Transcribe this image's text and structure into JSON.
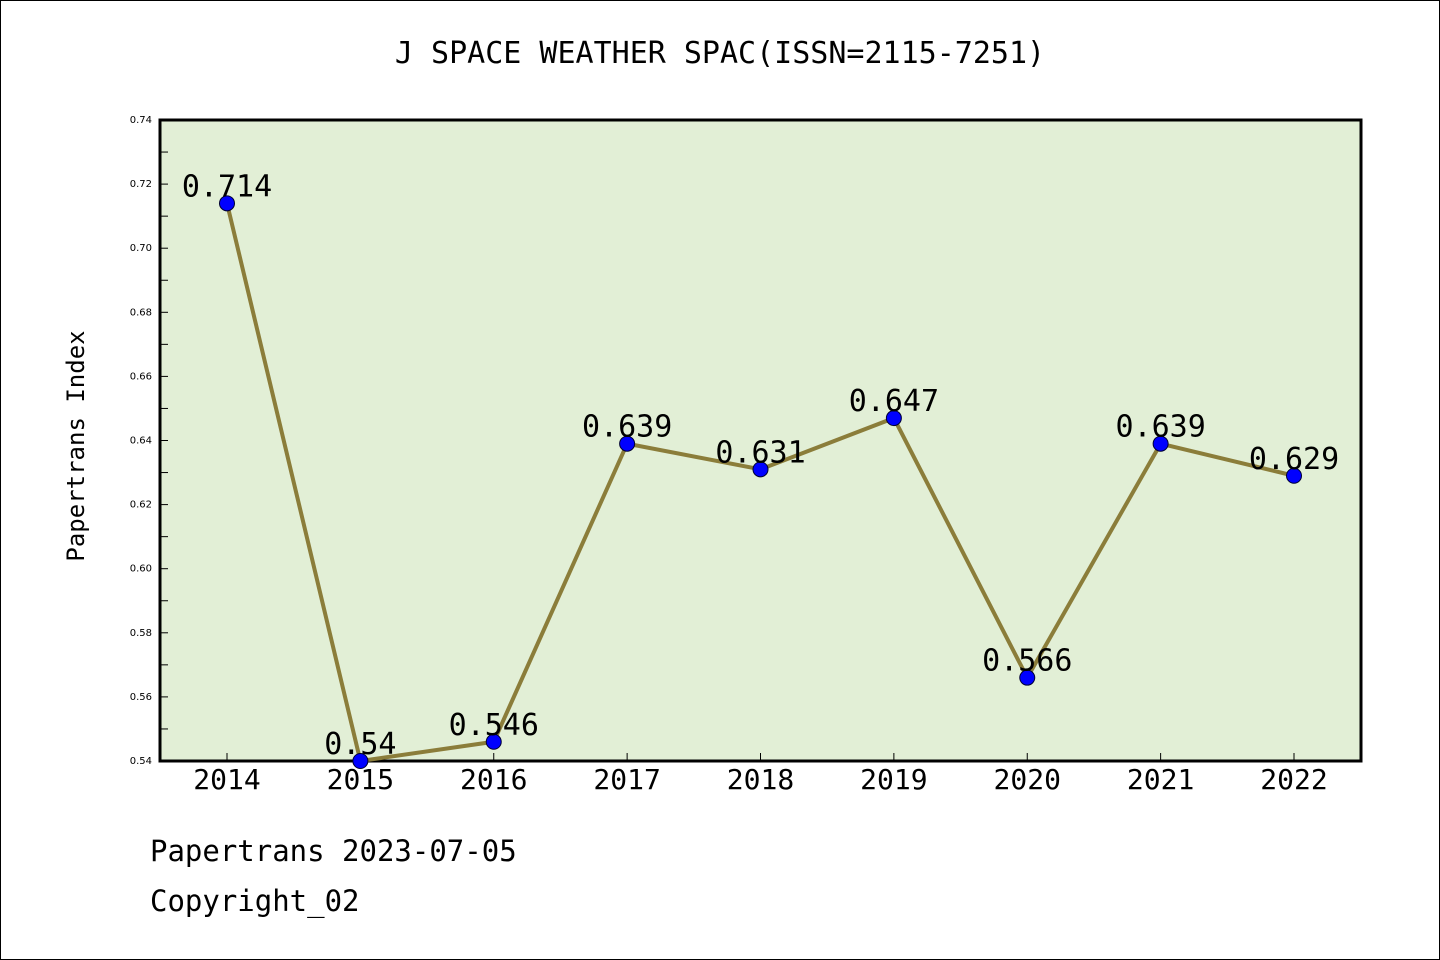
{
  "chart_data": {
    "type": "line",
    "title": "J SPACE WEATHER SPAC(ISSN=2115-7251)",
    "xlabel": "",
    "ylabel": "Papertrans Index",
    "categories": [
      "2014",
      "2015",
      "2016",
      "2017",
      "2018",
      "2019",
      "2020",
      "2021",
      "2022"
    ],
    "values": [
      0.714,
      0.54,
      0.546,
      0.639,
      0.631,
      0.647,
      0.566,
      0.639,
      0.629
    ],
    "data_labels": [
      "0.714",
      "0.54",
      "0.546",
      "0.639",
      "0.631",
      "0.647",
      "0.566",
      "0.639",
      "0.629"
    ],
    "ylim": [
      0.54,
      0.74
    ],
    "yticks": [
      "0.54",
      "0.56",
      "0.58",
      "0.60",
      "0.62",
      "0.64",
      "0.66",
      "0.68",
      "0.70",
      "0.72",
      "0.74"
    ],
    "grid": false,
    "colors": {
      "plot_background": "#e2efd6",
      "line": "#8b7d3a",
      "marker": "#0000ff"
    }
  },
  "footer": {
    "line1": "Papertrans 2023-07-05",
    "line2": "Copyright_02"
  }
}
